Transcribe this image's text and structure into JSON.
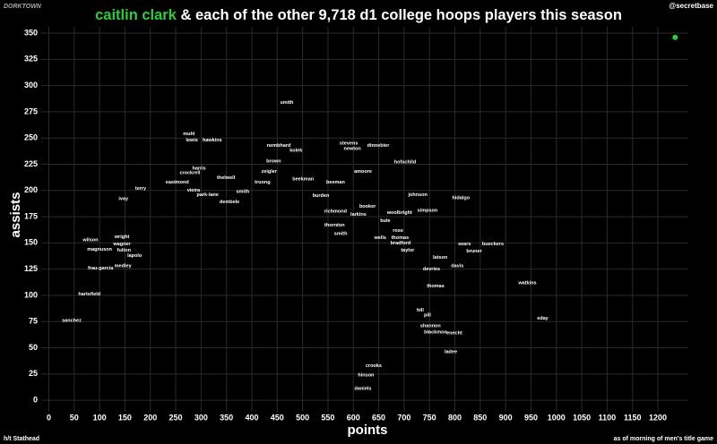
{
  "brand": "DORKTOWN",
  "handle": "@secretbase",
  "credit": "h/t Stathead",
  "note": "as of morning of men's title game",
  "chart_data": {
    "type": "scatter",
    "title": " & each of the other 9,718 d1 college hoops players this season",
    "x_label": "points",
    "y_label": "assists",
    "xlim": [
      -15,
      1260
    ],
    "ylim": [
      -11,
      356
    ],
    "xticks": [
      0,
      50,
      100,
      150,
      200,
      250,
      300,
      350,
      400,
      450,
      500,
      550,
      600,
      650,
      700,
      750,
      800,
      850,
      900,
      950,
      1000,
      1050,
      1100,
      1150,
      1200
    ],
    "yticks": [
      0,
      25,
      50,
      75,
      100,
      125,
      150,
      175,
      200,
      225,
      250,
      275,
      300,
      325,
      350
    ],
    "grid": true,
    "highlight": {
      "name": "caitlin clark",
      "color": "#2ecc40",
      "x": [
        1234
      ],
      "values": [
        346
      ]
    },
    "players": {
      "color": "#ffffff",
      "labels": [
        "smith",
        "muhl",
        "lewis",
        "hawkins",
        "nembhard",
        "kolek",
        "stevens",
        "newton",
        "dinnebier",
        "brown",
        "hofschild",
        "amoore",
        "zeigler",
        "harris",
        "crockrell",
        "eastmond",
        "thelwell",
        "beekman",
        "beeman",
        "truong",
        "terry",
        "vieira",
        "park-lane",
        "smith",
        "johnson",
        "hidalgo",
        "ivay",
        "dembele",
        "burden",
        "booker",
        "simpson",
        "woolbright",
        "richmond",
        "larkins",
        "bule",
        "rose",
        "thornton",
        "smith",
        "wells",
        "thomas",
        "bradford",
        "sears",
        "bueckers",
        "taylor",
        "bruner",
        "latson",
        "davis",
        "devries",
        "watkins",
        "thomas",
        "wilson",
        "wright",
        "wagner",
        "magnuson",
        "fulton",
        "lapolo",
        "frau-garcia",
        "medley",
        "hartsfield",
        "sanchez",
        "eday",
        "ladee",
        "blackmon",
        "enecht",
        "pill",
        "shannon",
        "hill",
        "hinson",
        "crooks",
        "daniels"
      ],
      "x": [
        469,
        276,
        282,
        322,
        453,
        487,
        591,
        598,
        649,
        443,
        702,
        619,
        434,
        296,
        278,
        253,
        349,
        501,
        565,
        421,
        181,
        285,
        313,
        382,
        727,
        812,
        147,
        356,
        536,
        628,
        746,
        691,
        565,
        610,
        663,
        688,
        563,
        575,
        653,
        692,
        693,
        819,
        875,
        707,
        838,
        771,
        805,
        754,
        943,
        762,
        82,
        144,
        144,
        100,
        148,
        169,
        102,
        146,
        80,
        45,
        973,
        792,
        762,
        799,
        746,
        752,
        732,
        625,
        640,
        619
      ],
      "values": [
        284,
        254,
        248,
        248,
        243,
        238,
        245,
        240,
        243,
        228,
        227,
        218,
        218,
        221,
        217,
        208,
        212,
        211,
        208,
        208,
        202,
        200,
        196,
        199,
        196,
        193,
        192,
        189,
        195,
        185,
        181,
        179,
        180,
        177,
        171,
        162,
        167,
        159,
        155,
        155,
        150,
        149,
        149,
        143,
        142,
        136,
        128,
        125,
        112,
        109,
        153,
        156,
        149,
        144,
        143,
        138,
        126,
        128,
        101,
        76,
        78,
        46,
        65,
        64,
        81,
        71,
        86,
        24,
        33,
        11
      ]
    }
  }
}
